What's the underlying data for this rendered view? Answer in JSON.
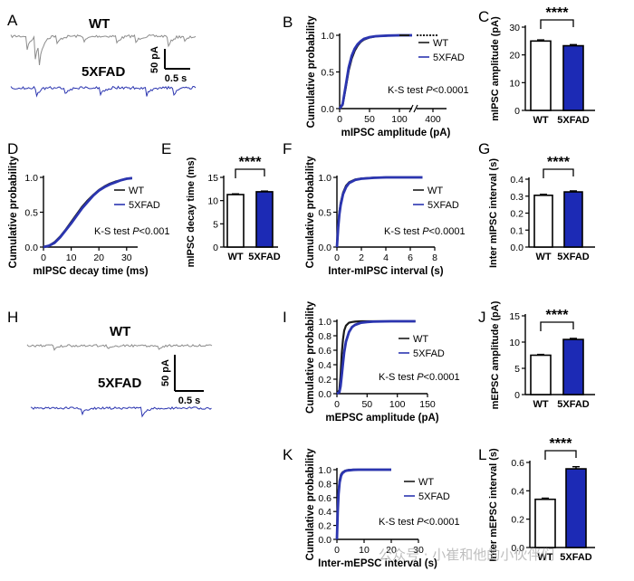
{
  "colors": {
    "wt": "#1a1a1a",
    "wt_trace": "#8c8c8c",
    "fad": "#2b35b0",
    "fad_bar": "#1c2ab5"
  },
  "panel_letters": [
    "A",
    "B",
    "C",
    "D",
    "E",
    "F",
    "G",
    "H",
    "I",
    "J",
    "K",
    "L"
  ],
  "trace_a": {
    "wt_label": "WT",
    "fad_label": "5XFAD",
    "scale_y": "50 pA",
    "scale_x": "0.5 s"
  },
  "trace_h": {
    "wt_label": "WT",
    "fad_label": "5XFAD",
    "scale_y": "50 pA",
    "scale_x": "0.5 s"
  },
  "watermark": "公众号 · 小崔和他的小伙伴们",
  "chart_data": [
    {
      "id": "B",
      "type": "line",
      "xlabel": "mIPSC amplitude (pA)",
      "ylabel": "Cumulative probability",
      "xticks": [
        "0",
        "50",
        "100",
        "",
        "400"
      ],
      "yticks": [
        "0.0",
        "0.5",
        "1.0"
      ],
      "xlim": [
        0,
        120
      ],
      "ylim": [
        0,
        1
      ],
      "axis_break": true,
      "legend": [
        "WT",
        "5XFAD"
      ],
      "annotation": "K-S test P<0.0001",
      "series": [
        {
          "name": "WT",
          "x": [
            0,
            5,
            10,
            15,
            20,
            25,
            30,
            35,
            40,
            50,
            60,
            80,
            100,
            120
          ],
          "y": [
            0,
            0.05,
            0.28,
            0.52,
            0.68,
            0.79,
            0.86,
            0.91,
            0.94,
            0.97,
            0.985,
            0.995,
            1.0,
            1.0
          ]
        },
        {
          "name": "5XFAD",
          "x": [
            0,
            5,
            10,
            15,
            20,
            25,
            30,
            35,
            40,
            50,
            60,
            80,
            100,
            120
          ],
          "y": [
            0,
            0.06,
            0.31,
            0.56,
            0.72,
            0.82,
            0.88,
            0.92,
            0.95,
            0.975,
            0.988,
            0.996,
            1.0,
            1.0
          ]
        }
      ]
    },
    {
      "id": "C",
      "type": "bar",
      "ylabel": "mIPSC amplitude (pA)",
      "categories": [
        "WT",
        "5XFAD"
      ],
      "values": [
        25.0,
        23.3
      ],
      "errors": [
        0.4,
        0.4
      ],
      "ylim": [
        0,
        30
      ],
      "yticks": [
        "0",
        "10",
        "20",
        "30"
      ],
      "significance": "****"
    },
    {
      "id": "D",
      "type": "line",
      "xlabel": "mIPSC decay time (ms)",
      "ylabel": "Cumulative probability",
      "xticks": [
        "0",
        "10",
        "20",
        "30"
      ],
      "yticks": [
        "0.0",
        "0.5",
        "1.0"
      ],
      "xlim": [
        0,
        34
      ],
      "ylim": [
        0,
        1
      ],
      "legend": [
        "WT",
        "5XFAD"
      ],
      "annotation": "K-S test P<0.001",
      "series": [
        {
          "name": "WT",
          "x": [
            0,
            2,
            4,
            6,
            8,
            10,
            12,
            14,
            16,
            18,
            20,
            22,
            24,
            26,
            28,
            30,
            32
          ],
          "y": [
            0,
            0.02,
            0.07,
            0.15,
            0.25,
            0.36,
            0.47,
            0.58,
            0.67,
            0.75,
            0.82,
            0.87,
            0.91,
            0.94,
            0.96,
            0.98,
            0.99
          ]
        },
        {
          "name": "5XFAD",
          "x": [
            0,
            2,
            4,
            6,
            8,
            10,
            12,
            14,
            16,
            18,
            20,
            22,
            24,
            26,
            28,
            30,
            32
          ],
          "y": [
            0,
            0.02,
            0.06,
            0.14,
            0.24,
            0.34,
            0.45,
            0.56,
            0.65,
            0.74,
            0.81,
            0.86,
            0.9,
            0.93,
            0.96,
            0.98,
            0.99
          ]
        }
      ]
    },
    {
      "id": "E",
      "type": "bar",
      "ylabel": "mIPSC decay time (ms)",
      "categories": [
        "WT",
        "5XFAD"
      ],
      "values": [
        11.3,
        11.9
      ],
      "errors": [
        0.15,
        0.15
      ],
      "ylim": [
        0,
        15
      ],
      "yticks": [
        "0",
        "5",
        "10",
        "15"
      ],
      "significance": "****"
    },
    {
      "id": "F",
      "type": "line",
      "xlabel": "Inter-mIPSC interval (s)",
      "ylabel": "Cumulative probability",
      "xticks": [
        "0",
        "2",
        "4",
        "6",
        "8"
      ],
      "yticks": [
        "0.0",
        "0.5",
        "1.0"
      ],
      "xlim": [
        0,
        8
      ],
      "ylim": [
        0,
        1
      ],
      "legend": [
        "WT",
        "5XFAD"
      ],
      "annotation": "K-S test P<0.0001",
      "series": [
        {
          "name": "WT",
          "x": [
            0,
            0.1,
            0.2,
            0.3,
            0.5,
            0.75,
            1,
            1.5,
            2,
            3,
            4,
            5,
            6,
            7
          ],
          "y": [
            0,
            0.3,
            0.5,
            0.63,
            0.78,
            0.88,
            0.93,
            0.97,
            0.985,
            0.995,
            1,
            1,
            1,
            1
          ]
        },
        {
          "name": "5XFAD",
          "x": [
            0,
            0.1,
            0.2,
            0.3,
            0.5,
            0.75,
            1,
            1.5,
            2,
            3,
            4,
            5,
            6,
            7
          ],
          "y": [
            0,
            0.28,
            0.47,
            0.6,
            0.76,
            0.86,
            0.92,
            0.965,
            0.98,
            0.994,
            1,
            1,
            1,
            1
          ]
        }
      ]
    },
    {
      "id": "G",
      "type": "bar",
      "ylabel": "Inter mIPSC interval (s)",
      "categories": [
        "WT",
        "5XFAD"
      ],
      "values": [
        0.305,
        0.325
      ],
      "errors": [
        0.006,
        0.006
      ],
      "ylim": [
        0,
        0.4
      ],
      "yticks": [
        "0.0",
        "0.1",
        "0.2",
        "0.3",
        "0.4"
      ],
      "significance": "****"
    },
    {
      "id": "I",
      "type": "line",
      "xlabel": "mEPSC amplitude (pA)",
      "ylabel": "Cumulative probability",
      "xticks": [
        "0",
        "50",
        "100",
        "150"
      ],
      "yticks": [
        "0.0",
        "0.2",
        "0.4",
        "0.6",
        "0.8",
        "1.0"
      ],
      "xlim": [
        0,
        150
      ],
      "ylim": [
        0,
        1
      ],
      "legend": [
        "WT",
        "5XFAD"
      ],
      "annotation": "K-S test P<0.0001",
      "series": [
        {
          "name": "WT",
          "x": [
            0,
            4,
            6,
            8,
            10,
            12,
            15,
            20,
            25,
            30,
            40,
            60,
            90,
            130
          ],
          "y": [
            0,
            0.05,
            0.25,
            0.55,
            0.75,
            0.87,
            0.94,
            0.98,
            0.99,
            0.995,
            1,
            1,
            1,
            1
          ]
        },
        {
          "name": "5XFAD",
          "x": [
            0,
            4,
            6,
            8,
            10,
            12,
            15,
            20,
            25,
            30,
            40,
            50,
            60,
            90,
            130
          ],
          "y": [
            0,
            0.02,
            0.1,
            0.25,
            0.42,
            0.57,
            0.72,
            0.85,
            0.92,
            0.95,
            0.98,
            0.99,
            0.995,
            1,
            1
          ]
        }
      ]
    },
    {
      "id": "J",
      "type": "bar",
      "ylabel": "mEPSC amplitude (pA)",
      "categories": [
        "WT",
        "5XFAD"
      ],
      "values": [
        7.5,
        10.5
      ],
      "errors": [
        0.15,
        0.2
      ],
      "ylim": [
        0,
        15
      ],
      "yticks": [
        "0",
        "5",
        "10",
        "15"
      ],
      "significance": "****"
    },
    {
      "id": "K",
      "type": "line",
      "xlabel": "Inter-mEPSC interval (s)",
      "ylabel": "Cumulative probability",
      "xticks": [
        "0",
        "10",
        "20",
        "30"
      ],
      "yticks": [
        "0.0",
        "0.2",
        "0.4",
        "0.6",
        "0.8",
        "1.0"
      ],
      "xlim": [
        0,
        30
      ],
      "ylim": [
        0,
        1
      ],
      "legend": [
        "WT",
        "5XFAD"
      ],
      "annotation": "K-S test P<0.0001",
      "series": [
        {
          "name": "WT",
          "x": [
            0,
            0.3,
            0.6,
            1,
            1.5,
            2,
            3,
            4,
            6,
            8,
            12,
            16,
            20
          ],
          "y": [
            0,
            0.45,
            0.7,
            0.85,
            0.93,
            0.96,
            0.985,
            0.995,
            1,
            1,
            1,
            1,
            1
          ]
        },
        {
          "name": "5XFAD",
          "x": [
            0,
            0.3,
            0.6,
            1,
            1.5,
            2,
            3,
            4,
            6,
            8,
            12,
            16,
            20
          ],
          "y": [
            0,
            0.4,
            0.65,
            0.82,
            0.91,
            0.95,
            0.98,
            0.99,
            0.998,
            1,
            1,
            1,
            1
          ]
        }
      ]
    },
    {
      "id": "L",
      "type": "bar",
      "ylabel": "Inter mEPSC interval (s)",
      "categories": [
        "WT",
        "5XFAD"
      ],
      "values": [
        0.34,
        0.555
      ],
      "errors": [
        0.008,
        0.015
      ],
      "ylim": [
        0,
        0.6
      ],
      "yticks": [
        "0.0",
        "0.2",
        "0.4",
        "0.6"
      ],
      "significance": "****"
    }
  ]
}
